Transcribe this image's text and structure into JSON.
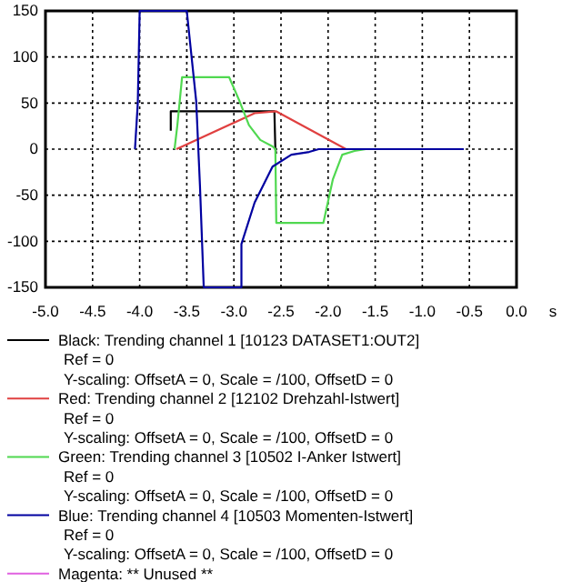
{
  "chart_data": {
    "type": "line",
    "xlabel": "s",
    "xlim": [
      -5,
      0
    ],
    "xticks": [
      {
        "value": -5,
        "label": "-5.0"
      },
      {
        "value": -4.5,
        "label": "-4.5"
      },
      {
        "value": -4,
        "label": "-4.0"
      },
      {
        "value": -3.5,
        "label": "-3.5"
      },
      {
        "value": -3,
        "label": "-3.0"
      },
      {
        "value": -2.5,
        "label": "-2.5"
      },
      {
        "value": -2,
        "label": "-2.0"
      },
      {
        "value": -1.5,
        "label": "-1.5"
      },
      {
        "value": -1,
        "label": "-1.0"
      },
      {
        "value": -0.5,
        "label": "-0.5"
      },
      {
        "value": 0,
        "label": "0.0"
      }
    ],
    "ylim": [
      -150,
      150
    ],
    "yticks": [
      -150,
      -100,
      -50,
      0,
      50,
      100,
      150
    ],
    "grid": true,
    "legend": "bottom",
    "series": [
      {
        "name": "Black: Trending channel 1  [10123   DATASET1:OUT2]",
        "color": "#000000",
        "x": [
          -3.67,
          -3.67,
          -2.57,
          -2.56,
          -2.55
        ],
        "values": [
          20,
          41,
          41,
          0,
          -5
        ]
      },
      {
        "name": "Red: Trending channel 2  [12102   Drehzahl-Istwert]",
        "color": "#e04040",
        "x": [
          -3.61,
          -2.78,
          -2.55,
          -1.81,
          -1.5
        ],
        "values": [
          0,
          39,
          41,
          0,
          0
        ]
      },
      {
        "name": "Green: Trending channel 3  [10502   I-Anker Istwert]",
        "color": "#50d850",
        "x": [
          -3.63,
          -3.6,
          -3.55,
          -3.05,
          -2.94,
          -2.84,
          -2.72,
          -2.59,
          -2.56,
          -2.55,
          -2.05,
          -1.95,
          -1.85,
          -1.72,
          -1.6,
          -1.1
        ],
        "values": [
          0,
          26,
          78,
          78,
          52,
          26,
          10,
          3,
          0,
          -80,
          -80,
          -33,
          -6,
          -2,
          0,
          0
        ]
      },
      {
        "name": "Blue: Trending channel 4  [10503   Momenten-Istwert]",
        "color": "#0000a0",
        "x": [
          -4.05,
          -4.02,
          -4.0,
          -3.5,
          -3.4,
          -3.36,
          -3.32,
          -2.92,
          -2.92,
          -2.78,
          -2.59,
          -2.39,
          -2.2,
          -2.1,
          -1.37,
          -0.56
        ],
        "values": [
          0,
          50,
          150,
          150,
          52,
          -40,
          -150,
          -150,
          -103,
          -58,
          -19,
          -6,
          -3,
          0,
          0,
          0
        ]
      },
      {
        "name": "Magenta: **  Unused  **",
        "color": "#e060e0"
      }
    ],
    "annotations": [
      "Ref = 0",
      "Y-scaling: OffsetA = 0, Scale = /100, OffsetD = 0",
      "Ref = 0",
      "Y-scaling: OffsetA = 0, Scale = /100, OffsetD = 0",
      "Ref = 0",
      "Y-scaling: OffsetA = 0, Scale = /100, OffsetD = 0",
      "Ref = 0",
      "Y-scaling: OffsetA = 0, Scale = /100, OffsetD = 0"
    ]
  }
}
